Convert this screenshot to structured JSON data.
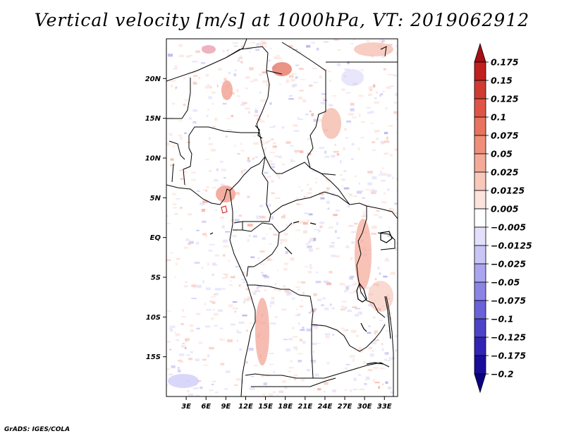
{
  "title": "Vertical velocity [m/s] at 1000hPa, VT: 2019062912",
  "credit": "GrADS: IGES/COLA",
  "map": {
    "lon_range": [
      0,
      35
    ],
    "lat_range": [
      -20,
      25
    ],
    "lat_ticks": [
      {
        "value": 20,
        "label": "20N"
      },
      {
        "value": 15,
        "label": "15N"
      },
      {
        "value": 10,
        "label": "10N"
      },
      {
        "value": 5,
        "label": "5N"
      },
      {
        "value": 0,
        "label": "EQ"
      },
      {
        "value": -5,
        "label": "5S"
      },
      {
        "value": -10,
        "label": "10S"
      },
      {
        "value": -15,
        "label": "15S"
      }
    ],
    "lon_ticks": [
      {
        "value": 3,
        "label": "3E"
      },
      {
        "value": 6,
        "label": "6E"
      },
      {
        "value": 9,
        "label": "9E"
      },
      {
        "value": 12,
        "label": "12E"
      },
      {
        "value": 15,
        "label": "15E"
      },
      {
        "value": 18,
        "label": "18E"
      },
      {
        "value": 21,
        "label": "21E"
      },
      {
        "value": 24,
        "label": "24E"
      },
      {
        "value": 27,
        "label": "27E"
      },
      {
        "value": 30,
        "label": "30E"
      },
      {
        "value": 33,
        "label": "33E"
      }
    ]
  },
  "colorbar": {
    "levels": [
      "0.175",
      "0.15",
      "0.125",
      "0.1",
      "0.075",
      "0.05",
      "0.025",
      "0.0125",
      "0.005",
      "-0.005",
      "-0.0125",
      "-0.025",
      "-0.05",
      "-0.075",
      "-0.1",
      "-0.125",
      "-0.175",
      "-0.2"
    ],
    "colors": [
      "#a50f15",
      "#c0201f",
      "#d03a33",
      "#e05448",
      "#e8735e",
      "#ef8f7a",
      "#f5a998",
      "#f9c8bb",
      "#fce3dc",
      "#ffffff",
      "#e2e0fb",
      "#c9c6f6",
      "#aaa5ee",
      "#8b84e5",
      "#6a62d9",
      "#4d43c8",
      "#3124b4",
      "#1a0c9a",
      "#0a0082"
    ]
  }
}
